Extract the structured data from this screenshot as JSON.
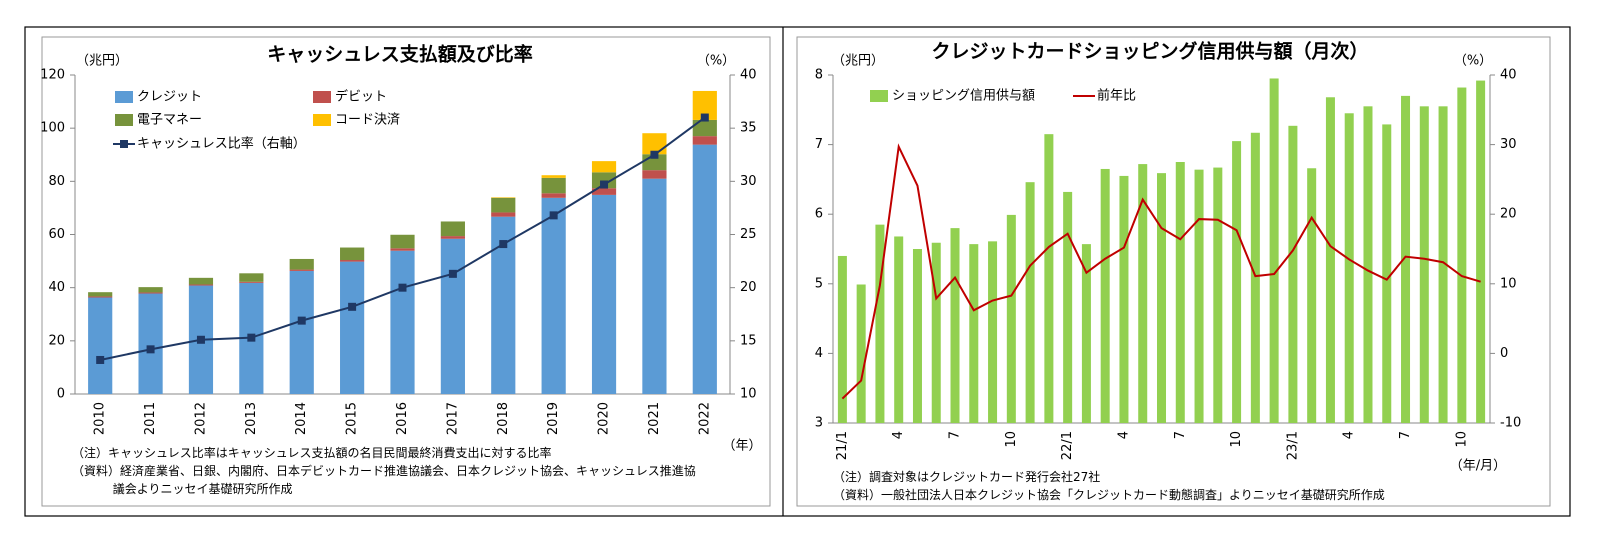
{
  "chart_data": [
    {
      "type": "bar",
      "stacked": true,
      "title": "キャッシュレス支払額及び比率",
      "y_label": "（兆円）",
      "y2_label": "（%）",
      "x_label": "（年）",
      "categories": [
        "2010",
        "2011",
        "2012",
        "2013",
        "2014",
        "2015",
        "2016",
        "2017",
        "2018",
        "2019",
        "2020",
        "2021",
        "2022"
      ],
      "series": [
        {
          "name": "クレジット",
          "color": "#5b9bd5",
          "values": [
            36.3,
            37.8,
            40.8,
            41.8,
            46.3,
            49.8,
            53.9,
            58.4,
            66.7,
            73.8,
            74.9,
            81.0,
            93.8
          ]
        },
        {
          "name": "デビット",
          "color": "#c0504d",
          "values": [
            0.4,
            0.4,
            0.4,
            0.4,
            0.5,
            0.6,
            0.9,
            1.0,
            1.6,
            1.7,
            2.5,
            3.2,
            3.2
          ]
        },
        {
          "name": "電子マネー",
          "color": "#77933c",
          "values": [
            1.6,
            2.0,
            2.5,
            3.2,
            4.0,
            4.7,
            5.1,
            5.5,
            5.5,
            5.8,
            6.0,
            6.0,
            6.1
          ]
        },
        {
          "name": "コード決済",
          "color": "#ffc000",
          "values": [
            0,
            0,
            0,
            0,
            0,
            0,
            0,
            0,
            0.2,
            1.0,
            4.2,
            7.9,
            10.9
          ]
        },
        {
          "name": "キャッシュレス比率（右軸）",
          "color": "#1f3864",
          "type": "line",
          "axis": "y2",
          "markers": true,
          "values": [
            13.2,
            14.2,
            15.1,
            15.3,
            16.9,
            18.2,
            20.0,
            21.3,
            24.1,
            26.8,
            29.7,
            32.5,
            36.0
          ]
        }
      ],
      "ylim": [
        0,
        120
      ],
      "yticks": [
        0,
        20,
        40,
        60,
        80,
        100,
        120
      ],
      "y2lim": [
        10,
        40
      ],
      "y2ticks": [
        10,
        15,
        20,
        25,
        30,
        35,
        40
      ],
      "grid": false,
      "notes": [
        "（注）キャッシュレス比率はキャッシュレス支払額の名目民間最終消費支出に対する比率",
        "（資料）経済産業省、日銀、内閣府、日本デビットカード推進協議会、日本クレジット協会、キャッシュレス推進協議会よりニッセイ基礎研究所作成"
      ]
    },
    {
      "type": "bar",
      "stacked": false,
      "title": "クレジットカードショッピング信用供与額（月次）",
      "y_label": "（兆円）",
      "y2_label": "（%）",
      "x_label": "（年/月）",
      "categories": [
        "21/1",
        null,
        null,
        "4",
        null,
        null,
        "7",
        null,
        null,
        "10",
        null,
        null,
        "22/1",
        null,
        null,
        "4",
        null,
        null,
        "7",
        null,
        null,
        "10",
        null,
        null,
        "23/1",
        null,
        null,
        "4",
        null,
        null,
        "7",
        null,
        null,
        "10",
        null
      ],
      "series": [
        {
          "name": "ショッピング信用供与額",
          "color": "#92d050",
          "values": [
            5.4,
            4.99,
            5.85,
            5.68,
            5.5,
            5.59,
            5.8,
            5.57,
            5.61,
            5.99,
            6.46,
            7.15,
            6.32,
            5.57,
            6.65,
            6.55,
            6.72,
            6.59,
            6.75,
            6.64,
            6.67,
            7.05,
            7.17,
            7.95,
            7.27,
            6.66,
            7.68,
            7.45,
            7.55,
            7.29,
            7.7,
            7.55,
            7.55,
            7.82,
            7.92
          ]
        },
        {
          "name": "前年比",
          "color": "#c00000",
          "type": "line",
          "axis": "y2",
          "markers": false,
          "values": [
            -6.5,
            -3.9,
            9.8,
            29.7,
            24.1,
            7.9,
            10.9,
            6.2,
            7.6,
            8.3,
            12.6,
            15.3,
            17.2,
            11.6,
            13.6,
            15.2,
            22.1,
            18.0,
            16.4,
            19.3,
            19.2,
            17.7,
            11.1,
            11.4,
            14.8,
            19.5,
            15.4,
            13.5,
            11.9,
            10.6,
            13.9,
            13.6,
            13.1,
            11.1,
            10.3
          ]
        }
      ],
      "ylim": [
        3,
        8
      ],
      "yticks": [
        3,
        4,
        5,
        6,
        7,
        8
      ],
      "y2lim": [
        -10,
        40
      ],
      "y2ticks": [
        -10,
        0,
        10,
        20,
        30,
        40
      ],
      "grid": false,
      "notes": [
        "（注）調査対象はクレジットカード発行会社27社",
        "（資料）一般社団法人日本クレジット協会「クレジットカード動態調査」よりニッセイ基礎研究所作成"
      ]
    }
  ]
}
